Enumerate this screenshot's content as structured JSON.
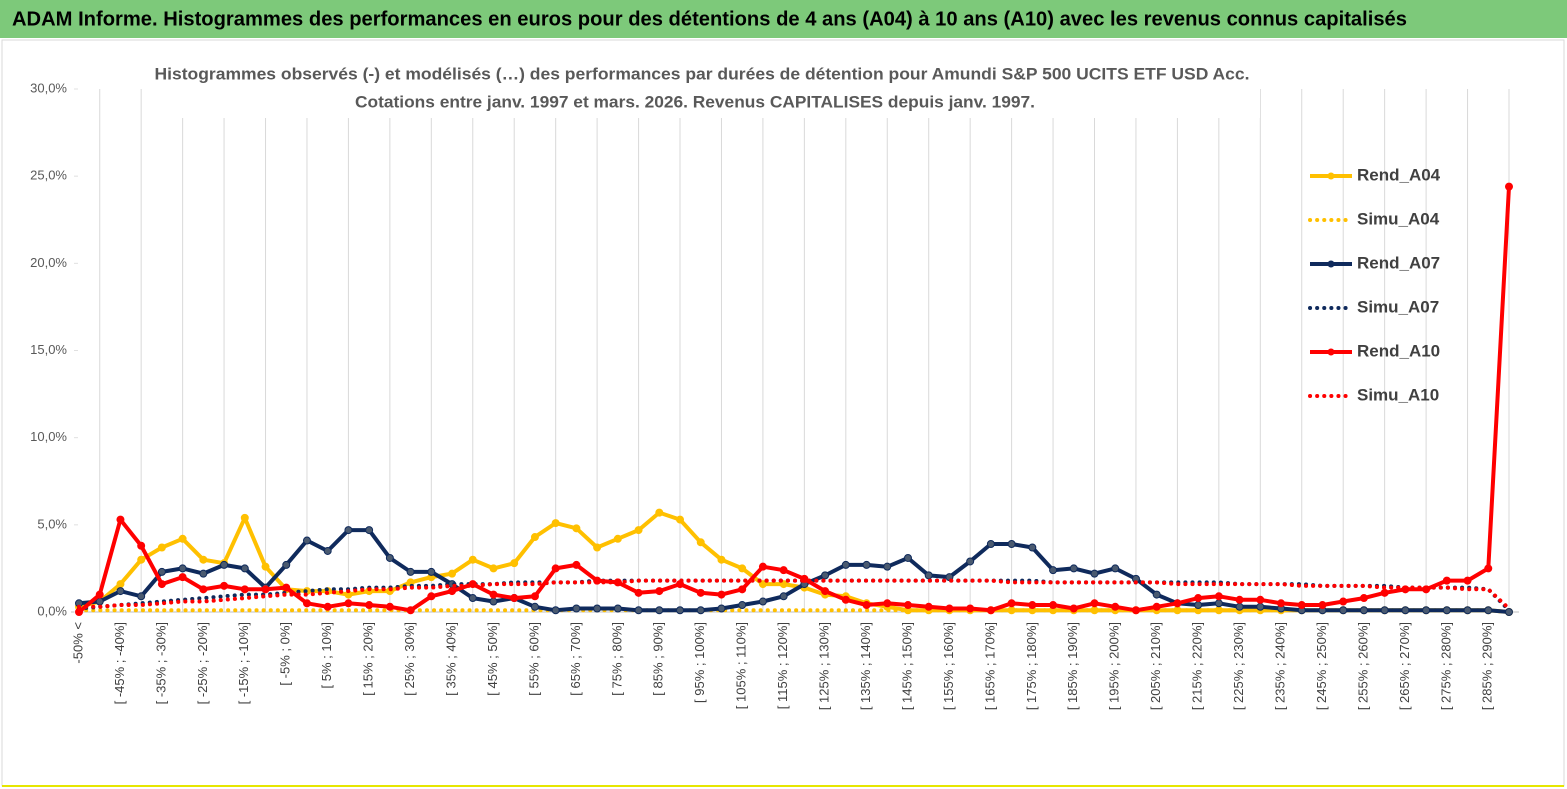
{
  "header": {
    "title": "ADAM Informe. Histogrammes des performances en euros pour des détentions de 4 ans (A04) à 10 ans (A10) avec les revenus connus capitalisés"
  },
  "chart_data": {
    "type": "line",
    "title": "Histogrammes observés (-) et modélisés (…) des performances par durées de détention pour Amundi S&P 500 UCITS ETF USD Acc.",
    "subtitle": "Cotations entre janv. 1997 et mars. 2026.  Revenus CAPITALISES depuis janv. 1997.",
    "categories": [
      "-50% <",
      null,
      "[ -45% ; -40%]",
      null,
      "[ -35% ; -30%]",
      null,
      "[ -25% ; -20%]",
      null,
      "[ -15% ; -10%]",
      null,
      "[ -5% ; 0%]",
      null,
      "[ 5% ; 10%]",
      null,
      "[ 15% ; 20%]",
      null,
      "[ 25% ; 30%]",
      null,
      "[ 35% ; 40%]",
      null,
      "[ 45% ; 50%]",
      null,
      "[ 55% ; 60%]",
      null,
      "[ 65% ; 70%]",
      null,
      "[ 75% ; 80%]",
      null,
      "[ 85% ; 90%]",
      null,
      "[ 95% ; 100%]",
      null,
      "[ 105% ; 110%]",
      null,
      "[ 115% ; 120%]",
      null,
      "[ 125% ; 130%]",
      null,
      "[ 135% ; 140%]",
      null,
      "[ 145% ; 150%]",
      null,
      "[ 155% ; 160%]",
      null,
      "[ 165% ; 170%]",
      null,
      "[ 175% ; 180%]",
      null,
      "[ 185% ; 190%]",
      null,
      "[ 195% ; 200%]",
      null,
      "[ 205% ; 210%]",
      null,
      "[ 215% ; 220%]",
      null,
      "[ 225% ; 230%]",
      null,
      "[ 235% ; 240%]",
      null,
      "[ 245% ; 250%]",
      null,
      "[ 255% ; 260%]",
      null,
      "[ 265% ; 270%]",
      null,
      "[ 275% ; 280%]",
      null,
      "[ 285% ; 290%]",
      null
    ],
    "series": [
      {
        "name": "Rend_A04",
        "color": "#ffc000",
        "style": "solid",
        "marker": true,
        "values": [
          0.3,
          0.6,
          1.6,
          3.0,
          3.7,
          4.2,
          3.0,
          2.8,
          5.4,
          2.6,
          1.3,
          1.2,
          1.2,
          1.0,
          1.2,
          1.2,
          1.7,
          2.0,
          2.2,
          3.0,
          2.5,
          2.8,
          4.3,
          5.1,
          4.8,
          3.7,
          4.2,
          4.7,
          5.7,
          5.3,
          4.0,
          3.0,
          2.5,
          1.6,
          1.6,
          1.4,
          1.0,
          0.9,
          0.5,
          0.3,
          0.1,
          0.1,
          0.1,
          0.1,
          0.1,
          0.1,
          0.1,
          0.1,
          0.1,
          0.1,
          0.1,
          0.1,
          0.1,
          0.1,
          0.1,
          0.1,
          0.1,
          0.1,
          0.1,
          0.1,
          0.1,
          0.1,
          0.1,
          0.1,
          0.1,
          0.1,
          0.1,
          0.1,
          0.1,
          0.0
        ]
      },
      {
        "name": "Simu_A04",
        "color": "#ffc000",
        "style": "dotted",
        "marker": false,
        "values": [
          0.1,
          0.1,
          0.1,
          0.1,
          0.1,
          0.1,
          0.1,
          0.1,
          0.1,
          0.1,
          0.1,
          0.1,
          0.1,
          0.1,
          0.1,
          0.1,
          0.1,
          0.1,
          0.1,
          0.1,
          0.1,
          0.1,
          0.1,
          0.1,
          0.1,
          0.1,
          0.1,
          0.1,
          0.1,
          0.1,
          0.1,
          0.1,
          0.1,
          0.1,
          0.1,
          0.1,
          0.1,
          0.1,
          0.1,
          0.1,
          0.1,
          0.1,
          0.1,
          0.1,
          0.1,
          0.1,
          0.1,
          0.1,
          0.1,
          0.1,
          0.1,
          0.1,
          0.1,
          0.1,
          0.1,
          0.1,
          0.1,
          0.1,
          0.1,
          0.1,
          0.1,
          0.1,
          0.1,
          0.1,
          0.1,
          0.1,
          0.1,
          0.1,
          0.1,
          0.0
        ]
      },
      {
        "name": "Rend_A07",
        "color": "#0f2a5c",
        "style": "solid",
        "marker": true,
        "values": [
          0.5,
          0.6,
          1.2,
          0.9,
          2.3,
          2.5,
          2.2,
          2.7,
          2.5,
          1.4,
          2.7,
          4.1,
          3.5,
          4.7,
          4.7,
          3.1,
          2.3,
          2.3,
          1.6,
          0.8,
          0.6,
          0.8,
          0.3,
          0.1,
          0.2,
          0.2,
          0.2,
          0.1,
          0.1,
          0.1,
          0.1,
          0.2,
          0.4,
          0.6,
          0.9,
          1.6,
          2.1,
          2.7,
          2.7,
          2.6,
          3.1,
          2.1,
          2.0,
          2.9,
          3.9,
          3.9,
          3.7,
          2.4,
          2.5,
          2.2,
          2.5,
          1.9,
          1.0,
          0.5,
          0.4,
          0.5,
          0.3,
          0.3,
          0.2,
          0.1,
          0.1,
          0.1,
          0.1,
          0.1,
          0.1,
          0.1,
          0.1,
          0.1,
          0.1,
          0.0
        ]
      },
      {
        "name": "Simu_A07",
        "color": "#0f2a5c",
        "style": "dotted",
        "marker": false,
        "values": [
          0.2,
          0.3,
          0.4,
          0.5,
          0.6,
          0.7,
          0.8,
          0.9,
          1.0,
          1.0,
          1.1,
          1.2,
          1.3,
          1.3,
          1.4,
          1.4,
          1.5,
          1.5,
          1.6,
          1.6,
          1.6,
          1.7,
          1.7,
          1.7,
          1.7,
          1.8,
          1.8,
          1.8,
          1.8,
          1.8,
          1.8,
          1.8,
          1.8,
          1.8,
          1.8,
          1.8,
          1.8,
          1.8,
          1.8,
          1.8,
          1.8,
          1.8,
          1.8,
          1.8,
          1.8,
          1.8,
          1.8,
          1.7,
          1.7,
          1.7,
          1.7,
          1.7,
          1.7,
          1.7,
          1.7,
          1.7,
          1.6,
          1.6,
          1.6,
          1.6,
          1.5,
          1.5,
          1.5,
          1.5,
          1.4,
          1.4,
          1.4,
          1.4,
          1.3,
          0.1
        ]
      },
      {
        "name": "Rend_A10",
        "color": "#ff0000",
        "style": "solid",
        "marker": true,
        "values": [
          0.0,
          1.0,
          5.3,
          3.8,
          1.6,
          2.0,
          1.3,
          1.5,
          1.3,
          1.3,
          1.4,
          0.5,
          0.3,
          0.5,
          0.4,
          0.3,
          0.1,
          0.9,
          1.2,
          1.6,
          1.0,
          0.8,
          0.9,
          2.5,
          2.7,
          1.8,
          1.7,
          1.1,
          1.2,
          1.6,
          1.1,
          1.0,
          1.3,
          2.6,
          2.4,
          1.9,
          1.2,
          0.7,
          0.4,
          0.5,
          0.4,
          0.3,
          0.2,
          0.2,
          0.1,
          0.5,
          0.4,
          0.4,
          0.2,
          0.5,
          0.3,
          0.1,
          0.3,
          0.5,
          0.8,
          0.9,
          0.7,
          0.7,
          0.5,
          0.4,
          0.4,
          0.6,
          0.8,
          1.1,
          1.3,
          1.3,
          1.8,
          1.8,
          2.5,
          24.4
        ]
      },
      {
        "name": "Simu_A10",
        "color": "#ff0000",
        "style": "dotted",
        "marker": false,
        "values": [
          0.3,
          0.3,
          0.4,
          0.4,
          0.5,
          0.6,
          0.6,
          0.7,
          0.8,
          0.9,
          1.0,
          1.0,
          1.1,
          1.2,
          1.3,
          1.3,
          1.4,
          1.4,
          1.5,
          1.5,
          1.6,
          1.6,
          1.6,
          1.7,
          1.7,
          1.7,
          1.7,
          1.8,
          1.8,
          1.8,
          1.8,
          1.8,
          1.8,
          1.8,
          1.8,
          1.8,
          1.8,
          1.8,
          1.8,
          1.8,
          1.8,
          1.8,
          1.8,
          1.8,
          1.8,
          1.7,
          1.7,
          1.7,
          1.7,
          1.7,
          1.7,
          1.7,
          1.7,
          1.6,
          1.6,
          1.6,
          1.6,
          1.6,
          1.6,
          1.5,
          1.5,
          1.5,
          1.5,
          1.4,
          1.4,
          1.4,
          1.4,
          1.3,
          1.3,
          0.2
        ]
      }
    ],
    "ylim": [
      0,
      30
    ],
    "yticks": [
      {
        "value": 0,
        "label": "0,0%"
      },
      {
        "value": 5,
        "label": "5,0%"
      },
      {
        "value": 10,
        "label": "10,0%"
      },
      {
        "value": 15,
        "label": "15,0%"
      },
      {
        "value": 20,
        "label": "20,0%"
      },
      {
        "value": 25,
        "label": "25,0%"
      },
      {
        "value": 30,
        "label": "30,0%"
      }
    ],
    "grid": "x",
    "legend": "right"
  }
}
